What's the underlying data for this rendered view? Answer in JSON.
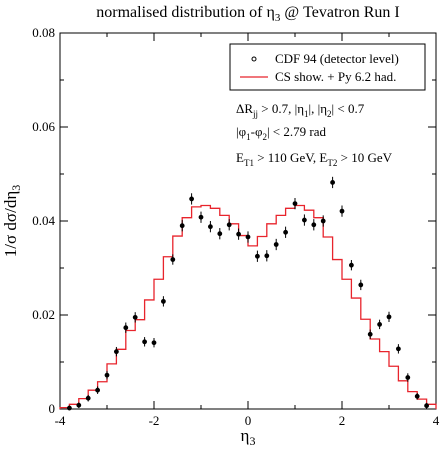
{
  "chart_data": {
    "type": "scatter",
    "title": "normalised distribution of η₃ @ Tevatron Run I",
    "xlabel": "η₃",
    "ylabel": "1/σ dσ/dη₃",
    "xlim": [
      -4,
      4
    ],
    "ylim": [
      0,
      0.08
    ],
    "x_ticks": [
      -4,
      -2,
      0,
      2,
      4
    ],
    "x_tick_labels": [
      "-4",
      "-2",
      "0",
      "2",
      "4"
    ],
    "y_ticks": [
      0,
      0.02,
      0.04,
      0.06,
      0.08
    ],
    "y_tick_labels": [
      "0",
      "0.02",
      "0.04",
      "0.06",
      "0.08"
    ],
    "grid": false,
    "legend_placement": "top-right",
    "series": [
      {
        "name": "CDF 94 (detector level)",
        "kind": "points-with-errors",
        "color": "#000000",
        "x": [
          -3.8,
          -3.6,
          -3.4,
          -3.2,
          -3.0,
          -2.8,
          -2.6,
          -2.4,
          -2.2,
          -2.0,
          -1.8,
          -1.6,
          -1.4,
          -1.2,
          -1.0,
          -0.8,
          -0.6,
          -0.4,
          -0.2,
          0.0,
          0.2,
          0.4,
          0.6,
          0.8,
          1.0,
          1.2,
          1.4,
          1.6,
          1.8,
          2.0,
          2.2,
          2.4,
          2.6,
          2.8,
          3.0,
          3.2,
          3.4,
          3.6,
          3.8
        ],
        "y": [
          0.0002,
          0.0008,
          0.0023,
          0.004,
          0.0072,
          0.0122,
          0.0173,
          0.0195,
          0.0143,
          0.0141,
          0.0229,
          0.0318,
          0.039,
          0.0447,
          0.0408,
          0.0388,
          0.0373,
          0.0392,
          0.0372,
          0.0366,
          0.0325,
          0.0326,
          0.035,
          0.0376,
          0.0437,
          0.0402,
          0.0392,
          0.04,
          0.0482,
          0.0421,
          0.0306,
          0.0264,
          0.0159,
          0.018,
          0.0196,
          0.0128,
          0.0067,
          0.0027,
          0.0007
        ],
        "err": [
          0.0005,
          0.0006,
          0.0007,
          0.0008,
          0.0009,
          0.001,
          0.0011,
          0.0011,
          0.001,
          0.001,
          0.0011,
          0.0011,
          0.0012,
          0.0012,
          0.0012,
          0.0012,
          0.0012,
          0.0012,
          0.0012,
          0.0012,
          0.0012,
          0.0012,
          0.0012,
          0.0012,
          0.0012,
          0.0012,
          0.0012,
          0.0012,
          0.0012,
          0.0012,
          0.0011,
          0.0011,
          0.001,
          0.001,
          0.0011,
          0.001,
          0.0009,
          0.0007,
          0.0006
        ]
      },
      {
        "name": "CS show. + Py 6.2 had.",
        "kind": "histogram",
        "color": "#e8242c",
        "edges": [
          -4.0,
          -3.8,
          -3.6,
          -3.4,
          -3.2,
          -3.0,
          -2.8,
          -2.6,
          -2.4,
          -2.2,
          -2.0,
          -1.8,
          -1.6,
          -1.4,
          -1.2,
          -1.0,
          -0.8,
          -0.6,
          -0.4,
          -0.2,
          0.0,
          0.2,
          0.4,
          0.6,
          0.8,
          1.0,
          1.2,
          1.4,
          1.6,
          1.8,
          2.0,
          2.2,
          2.4,
          2.6,
          2.8,
          3.0,
          3.2,
          3.4,
          3.6,
          3.8,
          4.0
        ],
        "values": [
          0.0003,
          0.001,
          0.0022,
          0.004,
          0.0058,
          0.0096,
          0.0127,
          0.0167,
          0.019,
          0.0232,
          0.0276,
          0.0324,
          0.0368,
          0.0407,
          0.043,
          0.0433,
          0.0427,
          0.0412,
          0.0394,
          0.0369,
          0.0347,
          0.0367,
          0.0394,
          0.0412,
          0.0427,
          0.0433,
          0.0423,
          0.0407,
          0.0366,
          0.0318,
          0.0276,
          0.0236,
          0.0191,
          0.0149,
          0.0122,
          0.0091,
          0.006,
          0.0037,
          0.0021,
          0.001
        ]
      }
    ],
    "annotations": [
      {
        "id": "cut1",
        "text": "ΔR_jj > 0.7, |η_1|, |η_2| < 0.7"
      },
      {
        "id": "cut2",
        "text": "|φ_1-φ_2| < 2.79 rad"
      },
      {
        "id": "cut3",
        "text": "E_T1 > 110 GeV, E_T2 > 10 GeV"
      }
    ]
  }
}
